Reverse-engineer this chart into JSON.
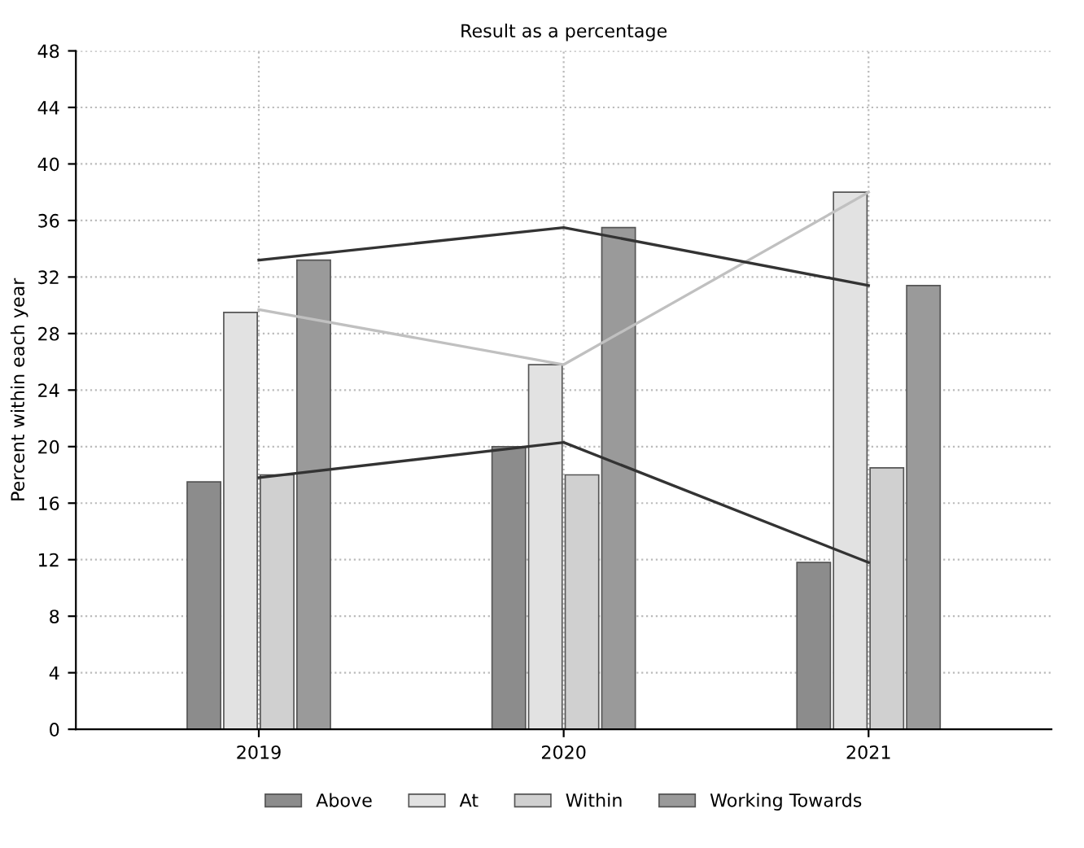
{
  "chart_data": {
    "type": "bar",
    "title": "Result as a percentage",
    "ylabel": "Percent within each year",
    "categories": [
      "2019",
      "2020",
      "2021"
    ],
    "series": [
      {
        "name": "Above",
        "color": "#8c8c8c",
        "values": [
          17.5,
          20,
          11.8
        ]
      },
      {
        "name": "At",
        "color": "#e2e2e2",
        "values": [
          29.5,
          25.8,
          38
        ]
      },
      {
        "name": "Within",
        "color": "#d0d0d0",
        "values": [
          18,
          18,
          18.5
        ]
      },
      {
        "name": "Working Towards",
        "color": "#9a9a9a",
        "values": [
          33.2,
          35.5,
          31.4
        ]
      },
      {
        "type": "line",
        "color": "#333333",
        "values": [
          17.8,
          20.3,
          11.8
        ]
      },
      {
        "type": "line",
        "color": "#c0c0c0",
        "values": [
          29.7,
          25.8,
          38
        ]
      },
      {
        "type": "line",
        "color": "#333333",
        "values": [
          33.2,
          35.5,
          31.4
        ]
      }
    ],
    "ylim": [
      0,
      48
    ],
    "yticks": [
      0,
      4,
      8,
      12,
      16,
      20,
      24,
      28,
      32,
      36,
      40,
      44,
      48
    ],
    "grid": true,
    "legend": "bottom",
    "line_style": "solid",
    "marker": "none"
  }
}
